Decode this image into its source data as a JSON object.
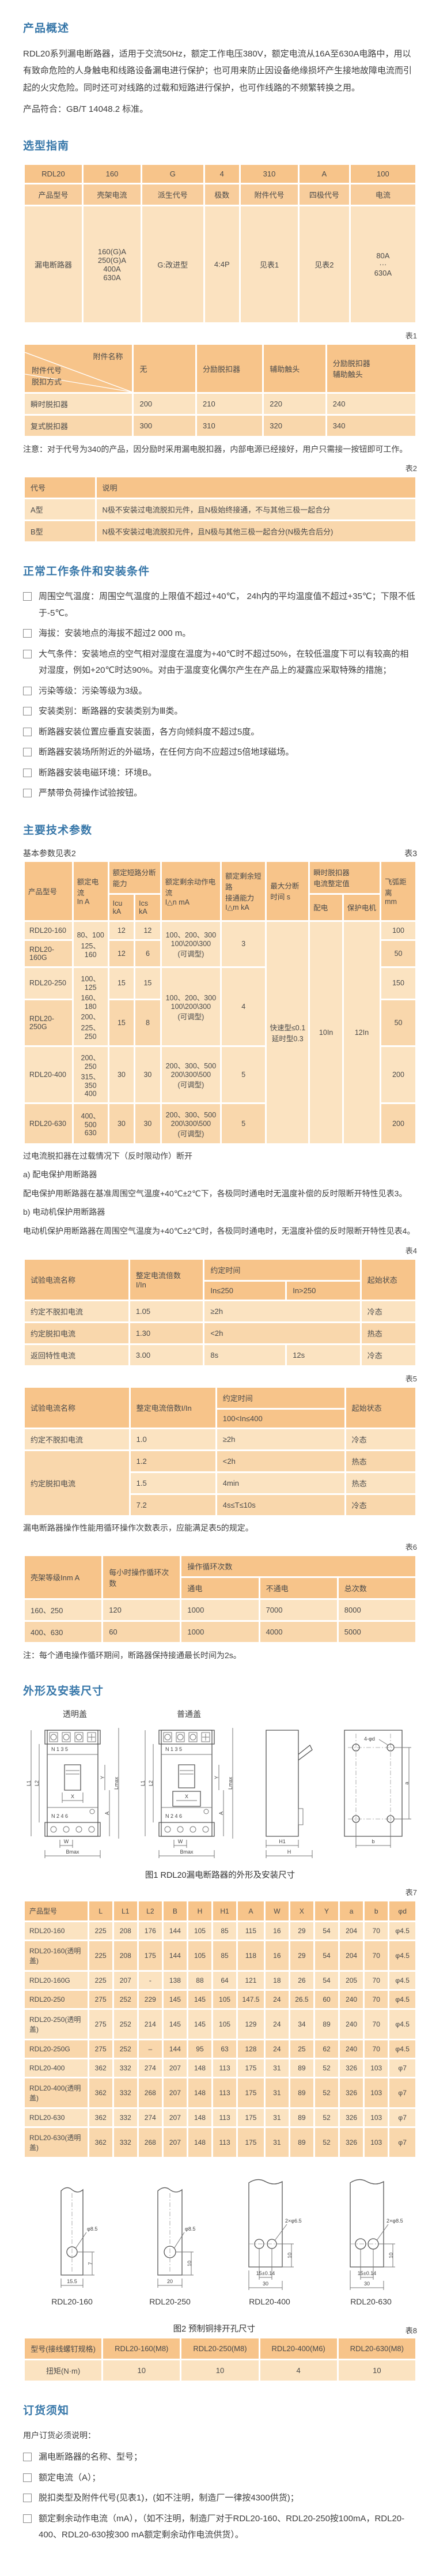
{
  "headings": {
    "overview": "产品概述",
    "selection": "选型指南",
    "conditions": "正常工作条件和安装条件",
    "params": "主要技术参数",
    "dims": "外形及安装尺寸",
    "ordering": "订货须知"
  },
  "labels": {
    "t1": "表1",
    "t2": "表2",
    "t3": "表3",
    "t4": "表4",
    "t5": "表5",
    "t6": "表6",
    "t7": "表7",
    "t8": "表8",
    "basic": "基本参数见表2"
  },
  "overview": {
    "p1": "RDL20系列漏电断路器，适用于交流50Hz，额定工作电压380V，额定电流从16A至630A电路中，用以有致命危险的人身触电和线路设备漏电进行保护；也可用来防止因设备绝缘损坏产生接地故障电流而引起的火灾危险。同时还可对线路的过载和短路进行保护，也可作线路的不频繁转换之用。",
    "p2": "产品符合：GB/T 14048.2 标准。"
  },
  "sel": {
    "rows": [
      [
        "RDL20",
        "160",
        "G",
        "4",
        "310",
        "A",
        "100"
      ],
      [
        "产品型号",
        "壳架电流",
        "派生代号",
        "极数",
        "附件代号",
        "四极代号",
        "电流"
      ],
      [
        "漏电断路器",
        "160(G)A\n250(G)A\n400A\n630A",
        "G:改进型",
        "4:4P",
        "见表1",
        "见表2",
        "80A\n···\n630A"
      ]
    ]
  },
  "attach": {
    "corner": {
      "name": "附件名称",
      "code": "附件代号",
      "mode": "脱扣方式"
    },
    "cols": [
      "无",
      "分励脱扣器",
      "辅助触头",
      "分励脱扣器\n辅助触头"
    ],
    "rows": [
      [
        "瞬时脱扣器",
        "200",
        "210",
        "220",
        "240"
      ],
      [
        "复式脱扣器",
        "300",
        "310",
        "320",
        "340"
      ]
    ],
    "note": "注意：对于代号为340的产品，因分励时采用漏电脱扣器，内部电源已经接好，用户只需接一按钮即可工作。"
  },
  "t2": {
    "head": [
      "代号",
      "说明"
    ],
    "rows": [
      [
        "A型",
        "N极不安装过电流脱扣元件，且N极始终接通，不与其他三极一起合分"
      ],
      [
        "B型",
        "N极不安装过电流脱扣元件，且N极与其他三极一起合分(N极先合后分)"
      ]
    ]
  },
  "conditions": {
    "items": [
      "周围空气温度：周围空气温度的上限值不超过+40℃， 24h内的平均温度值不超过+35℃；下限不低于-5℃。",
      "海拔：安装地点的海拔不超过2 000 m。",
      "大气条件：安装地点的空气相对湿度在温度为+40℃时不超过50%，在较低温度下可以有较高的相对湿度，例如+20℃时达90%。对由于温度变化偶尔产生在产品上的凝露应采取特殊的措施；",
      "污染等级：污染等级为3级。",
      "安装类别：断路器的安装类别为Ⅲ类。",
      "断路器安装位置应垂直安装面，各方向倾斜度不超过5度。",
      "断路器安装场所附近的外磁场，在任何方向不应超过5倍地球磁场。",
      "断路器安装电磁环境：环境B。",
      "严禁带负荷操作试验按钮。"
    ]
  },
  "t3": {
    "h": {
      "model": "产品型号",
      "in": "额定电流\nIn  A",
      "breaking": "额定短路分断能力",
      "icu": "Icu kA",
      "ics": "Ics kA",
      "idn": "额定剩余动作电流\nI△n  mA",
      "idm": "额定剩余短路\n接通能力\nI△m kA",
      "tmax": "最大分断\n时间  s",
      "inst": "瞬时脱扣器\n电流整定值",
      "dist": "配电",
      "motor": "保护电机",
      "arc": "飞弧距离\nmm"
    },
    "rows": [
      [
        "RDL20-160",
        [
          "80、100\n125、160",
          1,
          2
        ],
        "12",
        "12",
        [
          "100、200、300\n100\\200\\300\n(可调型)",
          1,
          2
        ],
        [
          "3",
          1,
          2
        ],
        [
          "快速型≤0.1\n延时型0.3",
          1,
          6
        ],
        [
          "10In",
          1,
          6
        ],
        [
          "12In",
          1,
          6
        ],
        "100"
      ],
      [
        "RDL20-160G",
        "12",
        "6",
        "50"
      ],
      [
        "RDL20-250",
        [
          "100、125\n160、180\n200、225、\n250",
          1,
          2
        ],
        "15",
        "15",
        [
          "100、200、300\n100\\200\\300\n(可调型)",
          1,
          2
        ],
        [
          "4",
          1,
          2
        ],
        "150"
      ],
      [
        "RDL20-250G",
        "15",
        "8",
        "50"
      ],
      [
        "RDL20-400",
        "200、250\n315、350\n400",
        "30",
        "30",
        "200、300、500\n200\\300\\500\n(可调型)",
        "5",
        "200"
      ],
      [
        "RDL20-630",
        "400、500\n630",
        "30",
        "30",
        "200、300、500\n200\\300\\500\n(可调型)",
        "5",
        "200"
      ]
    ]
  },
  "params": {
    "note1": "过电流脱扣器在过载情况下（反时限动作）断开",
    "a": "a) 配电保护用断路器",
    "a_text": "配电保护用断路器在基准周围空气温度+40℃±2℃下，各极同时通电时无温度补偿的反时限断开特性见表3。",
    "b": "b) 电动机保护用断路器",
    "b_text": "电动机保护用断路器在周围空气温度为+40℃±2℃时，各极同时通电时，无温度补偿的反时限断开特性见表4。",
    "cycles": "漏电断路器操作性能用循环操作次数表示，应能满足表5的规定。",
    "note6": "注：每个通电操作循环期间，断路器保持接通最长时间为2s。"
  },
  "t4": {
    "h": {
      "name": "试验电流名称",
      "mult": "整定电流倍数\nI/In",
      "time": "约定时间",
      "le": "In≤250",
      "gt": "In>250",
      "state": "起始状态"
    },
    "rows": [
      [
        "约定不脱扣电流",
        "1.05",
        [
          "≥2h",
          2
        ],
        "冷态"
      ],
      [
        "约定脱扣电流",
        "1.30",
        [
          "<2h",
          2
        ],
        "热态"
      ],
      [
        "返回特性电流",
        "3.00",
        "8s",
        "12s",
        "冷态"
      ]
    ]
  },
  "t5": {
    "h": {
      "name": "试验电流名称",
      "mult": "整定电流倍数I/In",
      "time": "约定时间",
      "range": "100<In≤400",
      "state": "起始状态"
    },
    "rows": [
      [
        "约定不脱扣电流",
        "1.0",
        "≥2h",
        "冷态"
      ],
      [
        [
          "约定脱扣电流",
          1,
          3
        ],
        "1.2",
        "<2h",
        "热态"
      ],
      [
        "1.5",
        "4min",
        "热态"
      ],
      [
        "7.2",
        "4s≤T≤10s",
        "冷态"
      ]
    ]
  },
  "t6": {
    "h": {
      "frame": "壳架等级Inm  A",
      "per_hour": "每小时操作循环次数",
      "cycles": "操作循环次数",
      "on": "通电",
      "off": "不通电",
      "total": "总次数"
    },
    "rows": [
      [
        "160、250",
        "120",
        "1000",
        "7000",
        "8000"
      ],
      [
        "400、630",
        "60",
        "1000",
        "4000",
        "5000"
      ]
    ]
  },
  "fig1": {
    "left_title": "透明盖",
    "right_title": "普通盖",
    "caption": "图1 RDL20漏电断路器的外形及安装尺寸",
    "top_terms": "N    1    3    5",
    "bot_terms": "N    2    4    6",
    "L1": "L1",
    "L2": "L2",
    "X": "X",
    "Y": "Y",
    "A": "A",
    "Lmax": "Lmax",
    "W": "W",
    "Bmax": "Bmax",
    "H": "H",
    "H1": "H1",
    "holes": "4-φd",
    "a": "a",
    "b": "b"
  },
  "t7": {
    "head": [
      "产品型号",
      "L",
      "L1",
      "L2",
      "B",
      "H",
      "H1",
      "A",
      "W",
      "X",
      "Y",
      "a",
      "b",
      "φd"
    ],
    "rows": [
      [
        "RDL20-160",
        "225",
        "208",
        "176",
        "144",
        "105",
        "85",
        "115",
        "16",
        "29",
        "54",
        "204",
        "70",
        "φ4.5"
      ],
      [
        "RDL20-160(透明盖)",
        "225",
        "208",
        "175",
        "144",
        "105",
        "85",
        "118",
        "16",
        "29",
        "54",
        "204",
        "70",
        "φ4.5"
      ],
      [
        "RDL20-160G",
        "225",
        "207",
        "-",
        "138",
        "88",
        "64",
        "121",
        "18",
        "26",
        "54",
        "205",
        "70",
        "φ4.5"
      ],
      [
        "RDL20-250",
        "275",
        "252",
        "229",
        "145",
        "145",
        "105",
        "147.5",
        "24",
        "26.5",
        "60",
        "240",
        "70",
        "φ4.5"
      ],
      [
        "RDL20-250(透明盖)",
        "275",
        "252",
        "214",
        "145",
        "145",
        "105",
        "129",
        "24",
        "34",
        "89",
        "240",
        "70",
        "φ4.5"
      ],
      [
        "RDL20-250G",
        "275",
        "252",
        "–",
        "144",
        "95",
        "63",
        "128",
        "24",
        "25",
        "62",
        "240",
        "70",
        "φ4.5"
      ],
      [
        "RDL20-400",
        "362",
        "332",
        "274",
        "207",
        "148",
        "113",
        "175",
        "31",
        "89",
        "52",
        "326",
        "103",
        "φ7"
      ],
      [
        "RDL20-400(透明盖)",
        "362",
        "332",
        "268",
        "207",
        "148",
        "113",
        "175",
        "31",
        "89",
        "52",
        "326",
        "103",
        "φ7"
      ],
      [
        "RDL20-630",
        "362",
        "332",
        "274",
        "207",
        "148",
        "113",
        "175",
        "31",
        "89",
        "52",
        "326",
        "103",
        "φ7"
      ],
      [
        "RDL20-630(透明盖)",
        "362",
        "332",
        "268",
        "207",
        "148",
        "113",
        "175",
        "31",
        "89",
        "52",
        "326",
        "103",
        "φ7"
      ]
    ]
  },
  "fig2": {
    "caption": "图2 预制铜排开孔尺寸",
    "items": [
      {
        "label": "RDL20-160",
        "hole": "φ8.5",
        "h": "7",
        "w": "15.5"
      },
      {
        "label": "RDL20-250",
        "hole": "φ8.5",
        "h": "10",
        "w": "20"
      },
      {
        "label": "RDL20-400",
        "hole": "2×φ6.5",
        "h": "10",
        "pitch": "15±0.14",
        "w": "30"
      },
      {
        "label": "RDL20-630",
        "hole": "2×φ8.5",
        "h": "10",
        "pitch": "15±0.14",
        "w": "30"
      }
    ]
  },
  "t8": {
    "head": [
      "型号(接线螺钉规格)",
      "RDL20-160(M8)",
      "RDL20-250(M8)",
      "RDL20-400(M6)",
      "RDL20-630(M8)"
    ],
    "rows": [
      [
        "扭矩(N·m)",
        "10",
        "10",
        "4",
        "10"
      ]
    ]
  },
  "ordering": {
    "intro": "用户订货必须说明：",
    "items": [
      "漏电断路器的名称、型号；",
      "额定电流（A）；",
      "脱扣类型及附件代号(见表1)，(如不注明，制造厂一律按4300供货)；",
      "额定剩余动作电流（mA），（如不注明，制造厂对于RDL20-160、RDL20-250按100mA，RDL20-400、RDL20-630按300 mA额定剩余动作电流供货）。"
    ]
  }
}
